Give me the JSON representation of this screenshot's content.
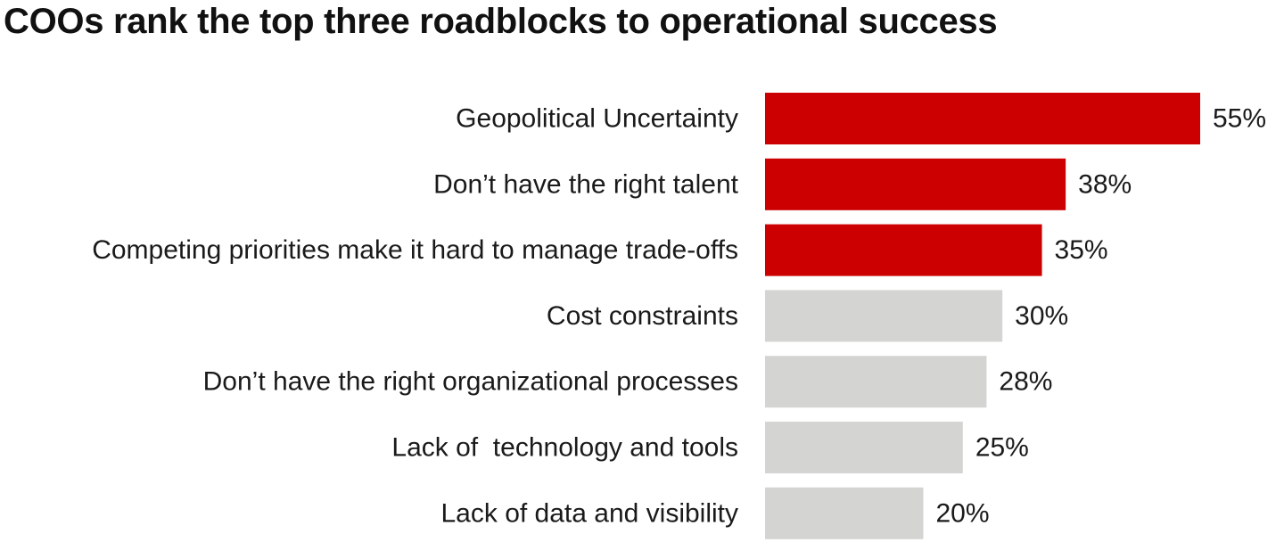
{
  "chart_data": {
    "type": "bar",
    "orientation": "horizontal",
    "title": "COOs rank the top three roadblocks to operational success",
    "categories": [
      "Geopolitical Uncertainty",
      "Don’t have the right talent",
      "Competing priorities make it hard to manage trade-offs",
      "Cost constraints",
      "Don’t have the right organizational processes",
      "Lack of  technology and tools",
      "Lack of data and visibility"
    ],
    "values": [
      55,
      38,
      35,
      30,
      28,
      25,
      20
    ],
    "value_labels": [
      "55%",
      "38%",
      "35%",
      "30%",
      "28%",
      "25%",
      "20%"
    ],
    "highlighted": [
      true,
      true,
      true,
      false,
      false,
      false,
      false
    ],
    "xlim": [
      0,
      55
    ],
    "grid": false,
    "legend": "none",
    "colors": {
      "highlight": "#cc0000",
      "default": "#d4d4d2"
    }
  }
}
